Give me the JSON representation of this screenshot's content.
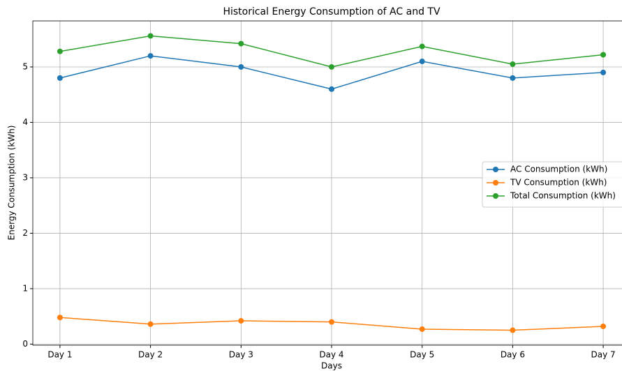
{
  "chart_data": {
    "type": "line",
    "title": "Historical Energy Consumption of AC and TV",
    "xlabel": "Days",
    "ylabel": "Energy Consumption (kWh)",
    "categories": [
      "Day 1",
      "Day 2",
      "Day 3",
      "Day 4",
      "Day 5",
      "Day 6",
      "Day 7"
    ],
    "series": [
      {
        "name": "AC Consumption (kWh)",
        "color": "#1f77b4",
        "values": [
          4.8,
          5.2,
          5.0,
          4.6,
          5.1,
          4.8,
          4.9
        ]
      },
      {
        "name": "TV Consumption (kWh)",
        "color": "#ff7f0e",
        "values": [
          0.48,
          0.36,
          0.42,
          0.4,
          0.27,
          0.25,
          0.32
        ]
      },
      {
        "name": "Total Consumption (kWh)",
        "color": "#2ca02c",
        "values": [
          5.28,
          5.56,
          5.42,
          5.0,
          5.37,
          5.05,
          5.22
        ]
      }
    ],
    "ylim": [
      -0.02,
      5.83
    ],
    "yticks": [
      0,
      1,
      2,
      3,
      4,
      5
    ],
    "grid": true,
    "legend": "right"
  }
}
